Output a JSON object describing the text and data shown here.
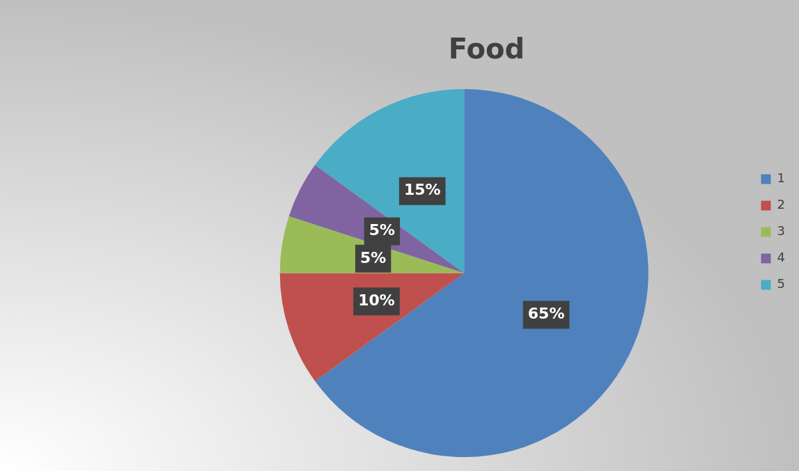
{
  "chart_data": {
    "type": "pie",
    "title": "Food",
    "categories": [
      "1",
      "2",
      "3",
      "4",
      "5"
    ],
    "values": [
      65,
      10,
      5,
      5,
      15
    ],
    "colors": [
      "#4f81bd",
      "#c0504d",
      "#9bbb59",
      "#8064a2",
      "#4bacc6"
    ],
    "value_labels": [
      "65%",
      "10%",
      "5%",
      "5%",
      "15%"
    ],
    "legend": "right"
  }
}
